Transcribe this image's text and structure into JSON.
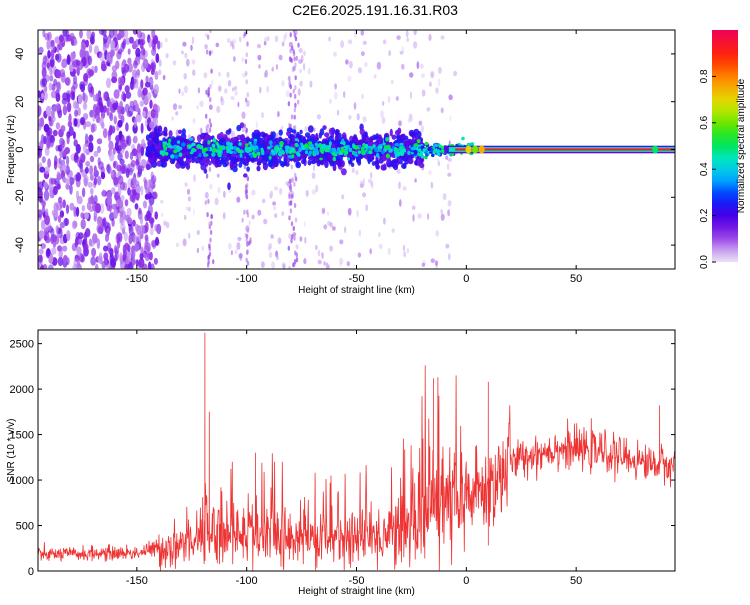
{
  "title": "C2E6.2025.191.16.31.R03",
  "chart_data": [
    {
      "type": "heatmap",
      "xlabel": "Height of straight line (km)",
      "ylabel": "Frequency (Hz)",
      "xlim": [
        -195,
        95
      ],
      "ylim": [
        -50,
        50
      ],
      "xticks": [
        -150,
        -100,
        -50,
        0,
        50
      ],
      "yticks": [
        -40,
        -20,
        0,
        20,
        40
      ],
      "colorbar": {
        "label": "Normalized spectral amplitude",
        "range": [
          0,
          1
        ],
        "ticks": [
          "0.0",
          "0.2",
          "0.4",
          "0.6",
          "0.8"
        ]
      },
      "regions": [
        {
          "x": [
            -195,
            -145
          ],
          "freq_spread": 50,
          "amplitude": 0.15,
          "description_level": "scattered noise"
        },
        {
          "x": [
            -145,
            -25
          ],
          "freq_spread": 5,
          "amplitude": 0.35
        },
        {
          "x": [
            -25,
            0
          ],
          "freq_spread": 2,
          "amplitude": 0.5
        },
        {
          "x": [
            0,
            95
          ],
          "freq_spread": 0.5,
          "amplitude": 0.95
        }
      ]
    },
    {
      "type": "line",
      "xlabel": "Height of straight line (km)",
      "ylabel": "SNR (10 * v/v)",
      "xlim": [
        -195,
        95
      ],
      "ylim": [
        0,
        2650
      ],
      "xticks": [
        -150,
        -100,
        -50,
        0,
        50
      ],
      "yticks": [
        0,
        500,
        1000,
        1500,
        2000,
        2500
      ],
      "color": "#ee3333",
      "trend": {
        "x": [
          -195,
          -150,
          -130,
          -120,
          -100,
          -80,
          -60,
          -40,
          -25,
          -15,
          -5,
          0,
          10,
          20,
          40,
          60,
          80,
          95
        ],
        "y": [
          180,
          200,
          300,
          450,
          400,
          380,
          370,
          380,
          500,
          800,
          700,
          820,
          900,
          1200,
          1350,
          1320,
          1200,
          1150
        ]
      },
      "spikes": [
        {
          "x": -119,
          "y": 2620
        },
        {
          "x": -117,
          "y": 1750
        },
        {
          "x": -96,
          "y": 1300
        },
        {
          "x": -15,
          "y": 2120
        },
        {
          "x": 10,
          "y": 2080
        },
        {
          "x": 10,
          "y": 280
        },
        {
          "x": 88,
          "y": 1820
        }
      ]
    }
  ]
}
